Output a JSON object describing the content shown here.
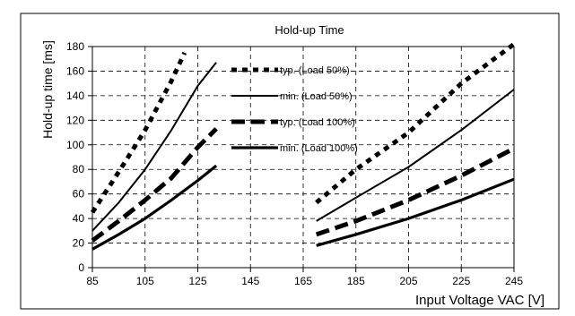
{
  "chart_data": {
    "type": "line",
    "title": "Hold-up Time",
    "xlabel": "Input Voltage VAC [V]",
    "ylabel": "Hold-up time [ms]",
    "xlim": [
      85,
      245
    ],
    "ylim": [
      0,
      180
    ],
    "x_ticks": [
      85,
      105,
      125,
      145,
      165,
      185,
      205,
      225,
      245
    ],
    "y_ticks": [
      0,
      20,
      40,
      60,
      80,
      100,
      120,
      140,
      160,
      180
    ],
    "grid": true,
    "legend_placement": "center",
    "series": [
      {
        "name": "typ. (Load 50%)",
        "style": "dotted-thick",
        "segments": [
          [
            [
              85,
              45
            ],
            [
              95,
              78
            ],
            [
              105,
              112
            ],
            [
              115,
              152
            ],
            [
              120,
              175
            ]
          ],
          [
            [
              170,
              53
            ],
            [
              185,
              80
            ],
            [
              205,
              110
            ],
            [
              225,
              150
            ],
            [
              245,
              182
            ]
          ]
        ]
      },
      {
        "name": "min. (Load 50%)",
        "style": "solid-thin",
        "segments": [
          [
            [
              85,
              30
            ],
            [
              95,
              53
            ],
            [
              105,
              80
            ],
            [
              115,
              112
            ],
            [
              125,
              148
            ],
            [
              132,
              167
            ]
          ],
          [
            [
              170,
              38
            ],
            [
              185,
              57
            ],
            [
              205,
              82
            ],
            [
              225,
              112
            ],
            [
              245,
              145
            ]
          ]
        ]
      },
      {
        "name": "typ. (Load 100%)",
        "style": "dashed-thick",
        "segments": [
          [
            [
              85,
              22
            ],
            [
              95,
              38
            ],
            [
              105,
              55
            ],
            [
              115,
              73
            ],
            [
              125,
              98
            ],
            [
              132,
              113
            ]
          ],
          [
            [
              170,
              27
            ],
            [
              185,
              38
            ],
            [
              205,
              55
            ],
            [
              225,
              75
            ],
            [
              245,
              97
            ]
          ]
        ]
      },
      {
        "name": "min. (Load 100%)",
        "style": "solid-thick",
        "segments": [
          [
            [
              85,
              15
            ],
            [
              95,
              27
            ],
            [
              105,
              40
            ],
            [
              115,
              55
            ],
            [
              125,
              71
            ],
            [
              132,
              83
            ]
          ],
          [
            [
              170,
              18
            ],
            [
              185,
              27
            ],
            [
              205,
              40
            ],
            [
              225,
              55
            ],
            [
              245,
              72
            ]
          ]
        ]
      }
    ]
  },
  "styles": {
    "line_color": "#000000",
    "grid_color": "#000000",
    "border_color": "#000000",
    "background": "#ffffff"
  }
}
